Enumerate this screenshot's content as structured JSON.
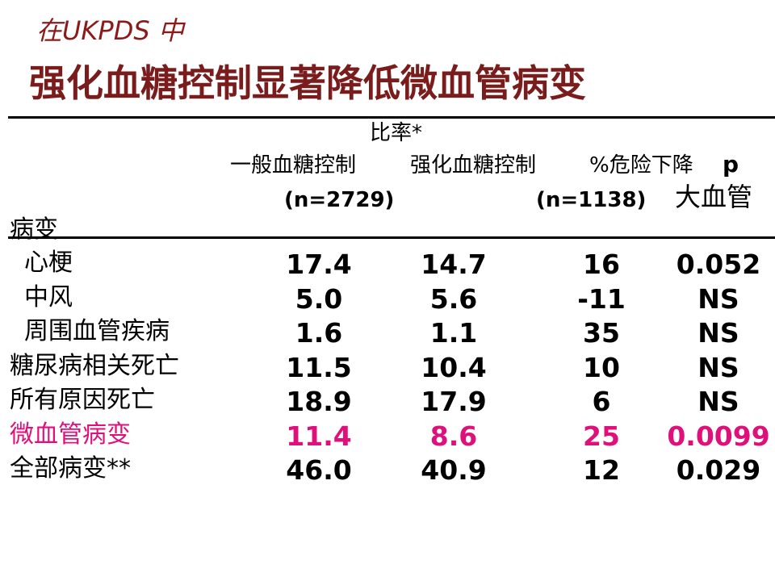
{
  "header": {
    "subtitle": "在UKPDS 中",
    "title": "强化血糖控制显著降低微血管病变"
  },
  "table": {
    "ratio_label": "比率*",
    "columns": [
      "一般血糖控制",
      "强化血糖控制",
      "%危险下降",
      "p"
    ],
    "n": [
      "(n=2729)",
      "(n=1138)"
    ],
    "group": [
      "大血管",
      "病变"
    ],
    "rows": [
      [
        "心梗",
        "17.4",
        "14.7",
        "16",
        "0.052"
      ],
      [
        "中风",
        "5.0",
        "5.6",
        "-11",
        "NS"
      ],
      [
        "周围血管疾病",
        "1.6",
        "1.1",
        "35",
        "NS"
      ],
      [
        "糖尿病相关死亡",
        "11.5",
        "10.4",
        "10",
        "NS"
      ],
      [
        "所有原因死亡",
        "18.9",
        "17.9",
        "6",
        "NS"
      ],
      [
        "微血管病变",
        "11.4",
        "8.6",
        "25",
        "0.0099"
      ],
      [
        "全部病变**",
        "46.0",
        "40.9",
        "12",
        "0.029"
      ]
    ]
  }
}
